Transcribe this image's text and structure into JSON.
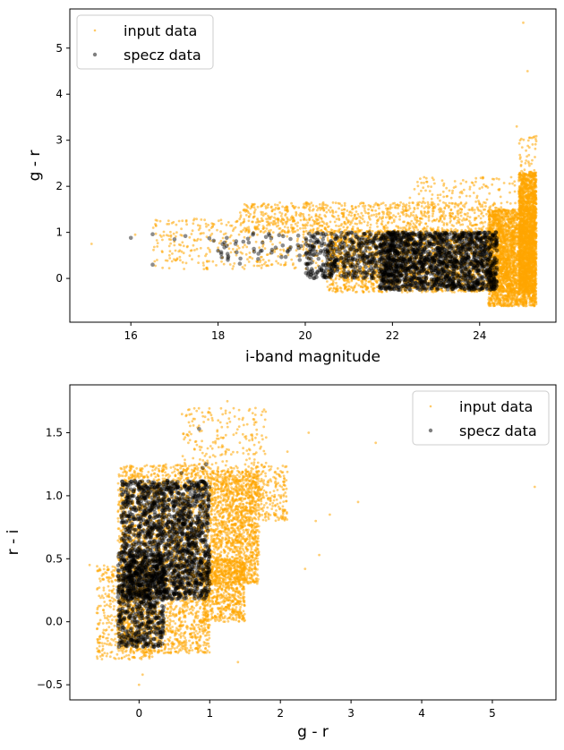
{
  "chart_data": [
    {
      "type": "scatter",
      "xlabel": "i-band magnitude",
      "ylabel": "g - r",
      "xlim": [
        14.6,
        25.75
      ],
      "ylim": [
        -0.95,
        5.85
      ],
      "xticks": [
        16,
        18,
        20,
        22,
        24
      ],
      "yticks": [
        0,
        1,
        2,
        3,
        4,
        5
      ],
      "legend": {
        "placement": "top-left",
        "entries": [
          "input data",
          "specz data"
        ]
      },
      "grid": false,
      "series": [
        {
          "name": "input data",
          "color": "#ffa500",
          "alpha": 0.55,
          "marker_size": 1.4,
          "clusters": [
            {
              "n": 2600,
              "x": [
                24.2,
                25.3
              ],
              "y": [
                -0.6,
                1.5
              ]
            },
            {
              "n": 1800,
              "x": [
                24.9,
                25.3
              ],
              "y": [
                -0.3,
                2.3
              ]
            },
            {
              "n": 2200,
              "x": [
                20.5,
                24.8
              ],
              "y": [
                -0.3,
                1.05
              ]
            },
            {
              "n": 900,
              "x": [
                18.5,
                24.5
              ],
              "y": [
                1.0,
                1.65
              ]
            },
            {
              "n": 400,
              "x": [
                16.5,
                21.0
              ],
              "y": [
                0.2,
                1.3
              ]
            },
            {
              "n": 120,
              "x": [
                22.5,
                25.3
              ],
              "y": [
                1.6,
                2.2
              ]
            },
            {
              "n": 40,
              "x": [
                24.9,
                25.3
              ],
              "y": [
                2.3,
                3.1
              ]
            }
          ],
          "points": [
            [
              15.1,
              0.75
            ],
            [
              16.1,
              0.95
            ],
            [
              16.6,
              0.4
            ],
            [
              17.3,
              0.7
            ],
            [
              17.8,
              1.05
            ],
            [
              18.1,
              0.45
            ],
            [
              19.0,
              1.3
            ],
            [
              20.9,
              1.5
            ],
            [
              22.4,
              1.75
            ],
            [
              23.6,
              1.85
            ],
            [
              25.0,
              5.55
            ],
            [
              25.1,
              4.5
            ],
            [
              24.85,
              3.3
            ],
            [
              25.2,
              3.05
            ],
            [
              25.05,
              2.5
            ],
            [
              24.0,
              1.95
            ],
            [
              22.9,
              1.65
            ],
            [
              21.5,
              1.55
            ],
            [
              25.25,
              -0.6
            ],
            [
              24.7,
              -0.55
            ]
          ]
        },
        {
          "name": "specz data",
          "color": "#000000",
          "alpha": 0.45,
          "marker_size": 2.3,
          "clusters": [
            {
              "n": 1500,
              "x": [
                21.7,
                24.4
              ],
              "y": [
                -0.25,
                1.0
              ]
            },
            {
              "n": 500,
              "x": [
                20.0,
                22.2
              ],
              "y": [
                0.0,
                1.0
              ]
            },
            {
              "n": 45,
              "x": [
                18.0,
                20.0
              ],
              "y": [
                0.4,
                1.0
              ]
            }
          ],
          "points": [
            [
              16.0,
              0.88
            ],
            [
              16.5,
              0.96
            ],
            [
              16.5,
              0.3
            ],
            [
              17.0,
              0.85
            ],
            [
              17.25,
              0.92
            ],
            [
              17.8,
              0.87
            ],
            [
              17.9,
              0.82
            ],
            [
              18.0,
              0.6
            ],
            [
              18.2,
              0.88
            ],
            [
              18.4,
              0.75
            ],
            [
              18.5,
              0.32
            ],
            [
              18.8,
              0.95
            ],
            [
              19.1,
              0.9
            ],
            [
              19.4,
              0.94
            ],
            [
              19.6,
              0.6
            ]
          ]
        }
      ]
    },
    {
      "type": "scatter",
      "xlabel": "g - r",
      "ylabel": "r - i",
      "xlim": [
        -0.98,
        5.9
      ],
      "ylim": [
        -0.62,
        1.88
      ],
      "xticks": [
        0,
        1,
        2,
        3,
        4,
        5
      ],
      "yticks": [
        -0.5,
        0.0,
        0.5,
        1.0,
        1.5
      ],
      "legend": {
        "placement": "top-right",
        "entries": [
          "input data",
          "specz data"
        ]
      },
      "grid": false,
      "series": [
        {
          "name": "input data",
          "color": "#ffa500",
          "alpha": 0.55,
          "marker_size": 1.4,
          "clusters": [
            {
              "n": 2600,
              "x": [
                -0.3,
                1.0
              ],
              "y": [
                -0.25,
                1.25
              ]
            },
            {
              "n": 1500,
              "x": [
                1.0,
                1.7
              ],
              "y": [
                0.3,
                1.2
              ]
            },
            {
              "n": 700,
              "x": [
                0.9,
                1.5
              ],
              "y": [
                0.0,
                0.5
              ]
            },
            {
              "n": 500,
              "x": [
                -0.6,
                0.2
              ],
              "y": [
                -0.3,
                0.45
              ]
            },
            {
              "n": 250,
              "x": [
                1.5,
                2.1
              ],
              "y": [
                0.8,
                1.25
              ]
            },
            {
              "n": 220,
              "x": [
                0.6,
                1.8
              ],
              "y": [
                1.15,
                1.7
              ]
            }
          ],
          "points": [
            [
              2.4,
              1.5
            ],
            [
              2.5,
              0.8
            ],
            [
              2.7,
              0.85
            ],
            [
              3.1,
              0.95
            ],
            [
              3.35,
              1.42
            ],
            [
              2.35,
              0.42
            ],
            [
              2.55,
              0.53
            ],
            [
              5.6,
              1.07
            ],
            [
              1.4,
              -0.32
            ],
            [
              0.0,
              -0.5
            ],
            [
              2.1,
              1.35
            ],
            [
              1.25,
              1.75
            ],
            [
              -0.7,
              0.45
            ],
            [
              -0.5,
              0.25
            ],
            [
              0.05,
              -0.42
            ]
          ]
        },
        {
          "name": "specz data",
          "color": "#000000",
          "alpha": 0.45,
          "marker_size": 2.3,
          "clusters": [
            {
              "n": 1700,
              "x": [
                -0.25,
                1.0
              ],
              "y": [
                0.18,
                1.12
              ]
            },
            {
              "n": 600,
              "x": [
                -0.3,
                0.35
              ],
              "y": [
                -0.2,
                0.55
              ]
            }
          ],
          "points": [
            [
              0.85,
              1.53
            ],
            [
              0.9,
              1.22
            ],
            [
              0.6,
              1.18
            ],
            [
              0.95,
              1.25
            ],
            [
              -0.2,
              -0.18
            ]
          ]
        }
      ]
    }
  ]
}
